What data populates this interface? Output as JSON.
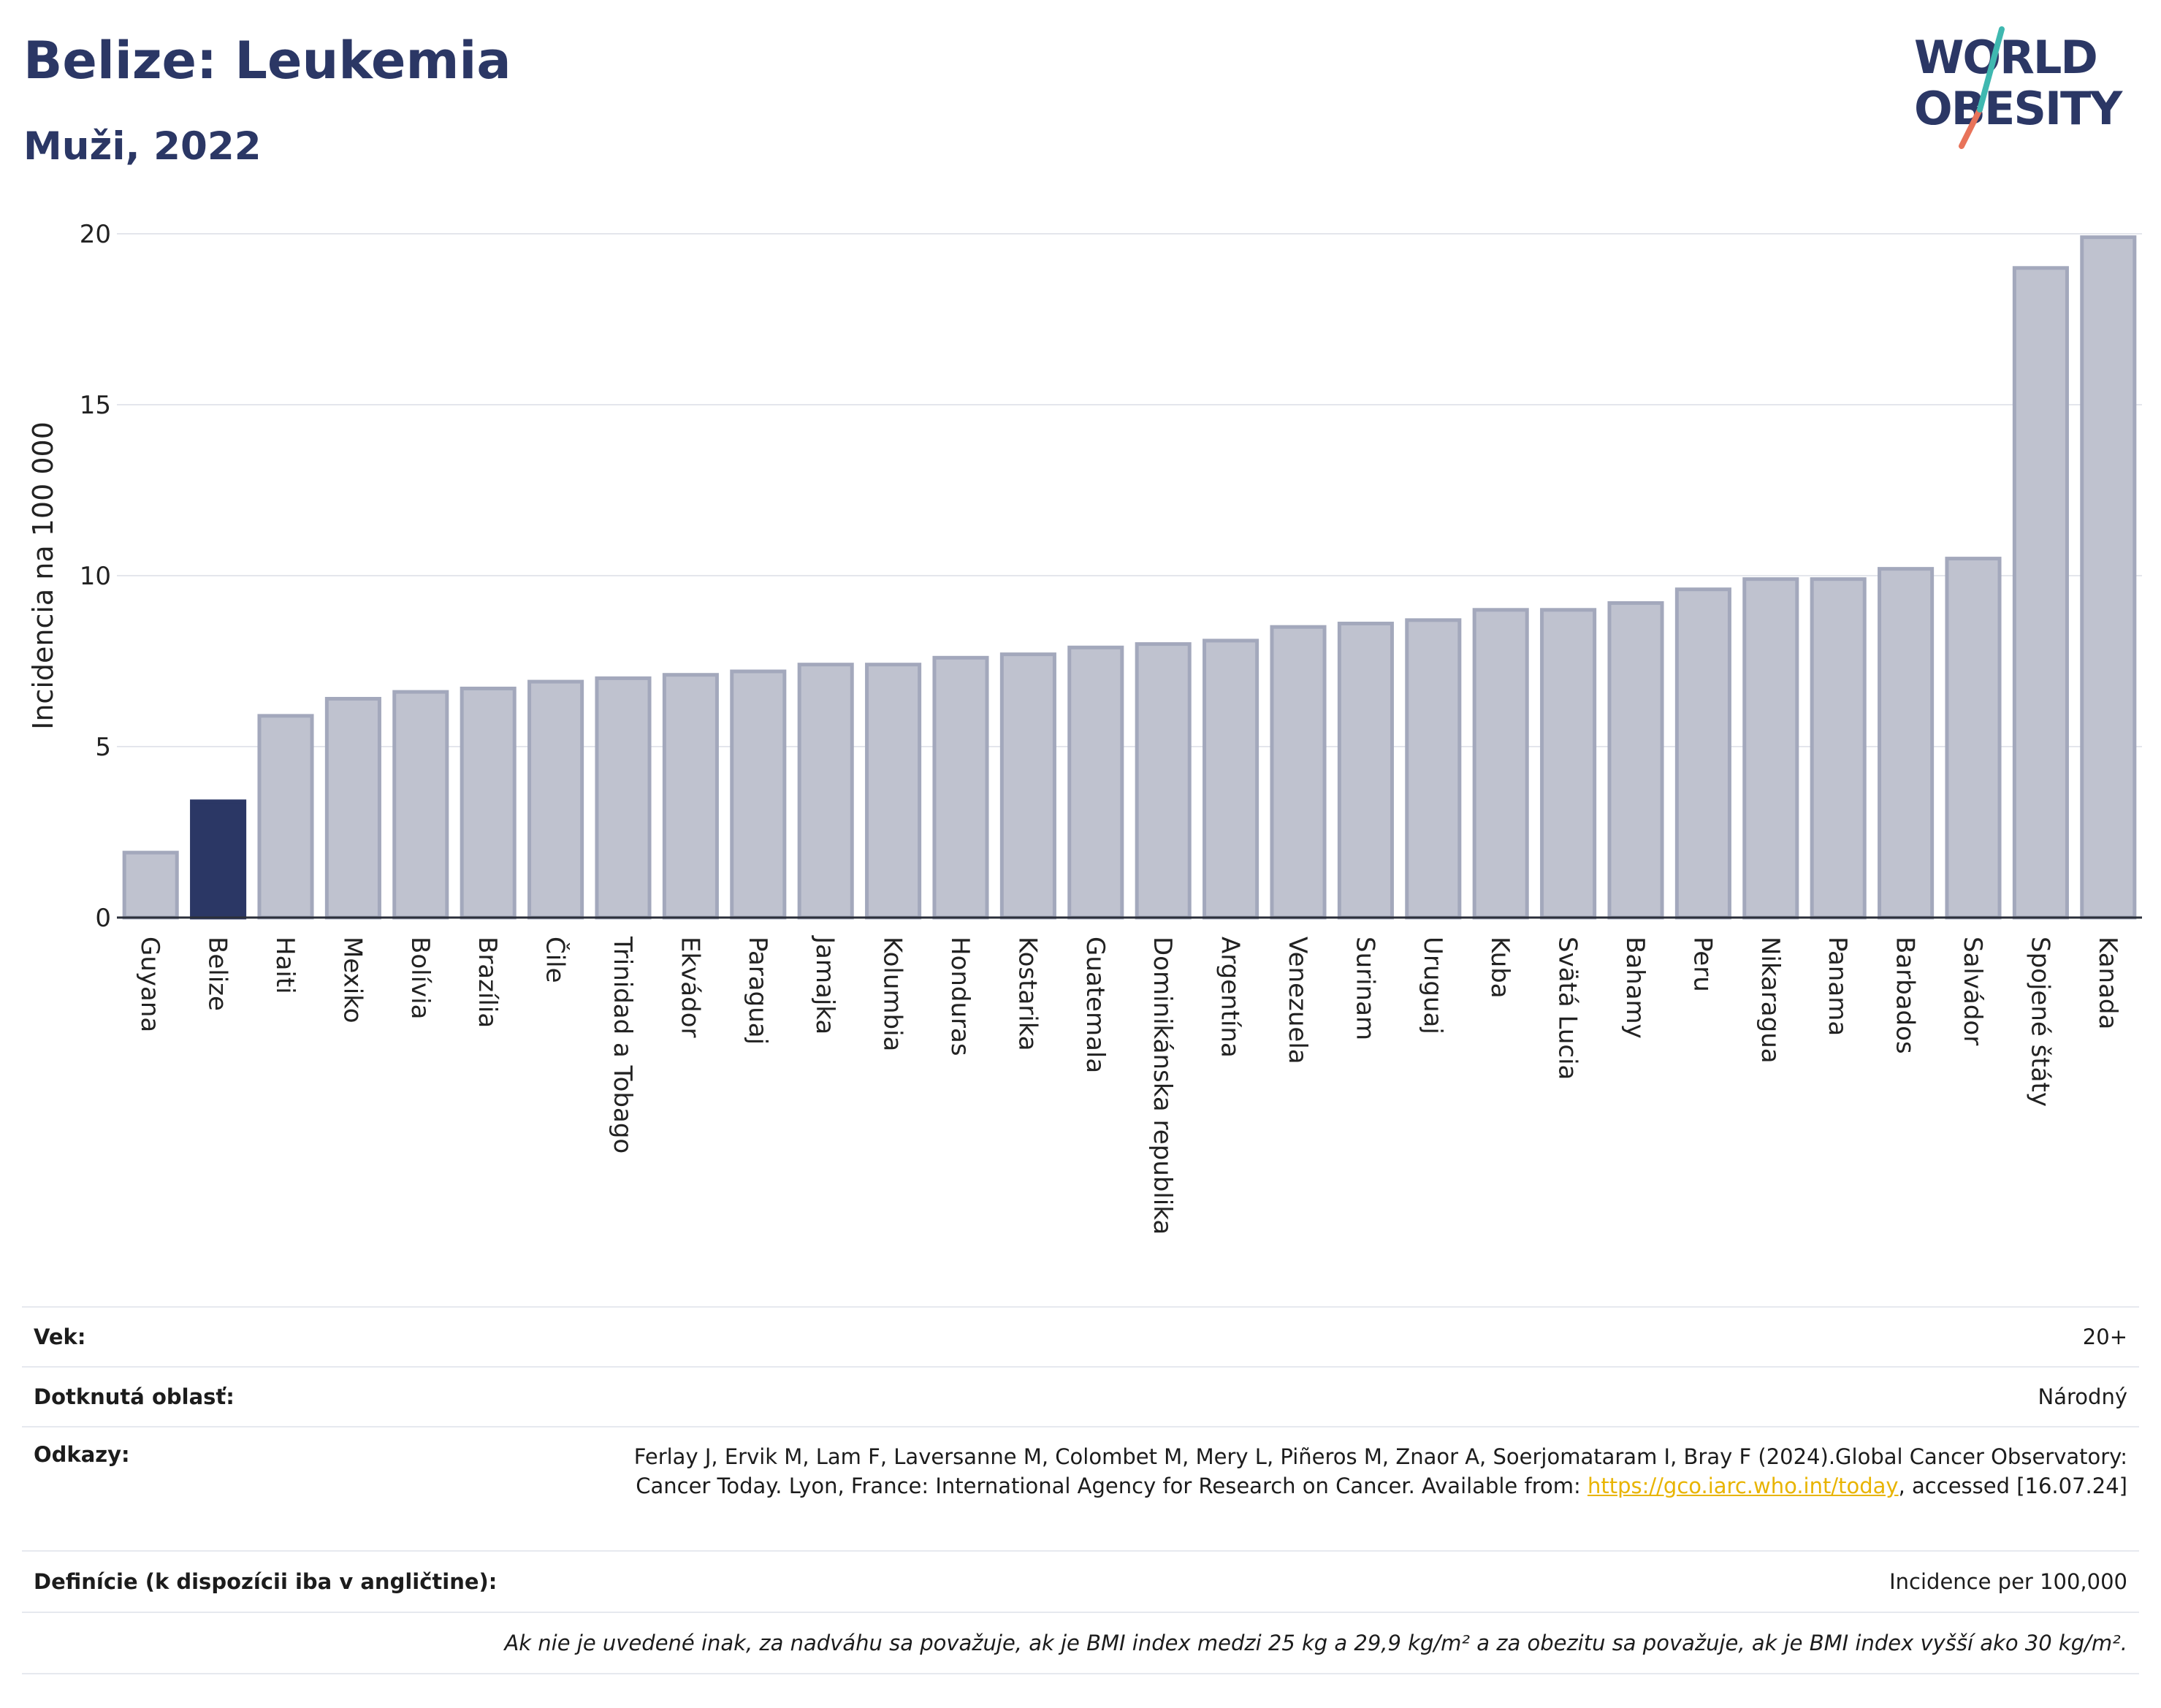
{
  "header": {
    "title": "Belize: Leukemia",
    "subtitle": "Muži, 2022"
  },
  "logo": {
    "line1": "WORLD",
    "line2": "OBESITY"
  },
  "colors": {
    "highlight": "#2b3765",
    "bar": "#bfc2cf",
    "bar_border": "#a3a8bc",
    "accent_teal": "#3fb8b0",
    "accent_coral": "#e8735a"
  },
  "chart_data": {
    "type": "bar",
    "ylabel": "Incidencia na 100 000",
    "ylim": [
      0,
      20
    ],
    "yticks": [
      0,
      5,
      10,
      15,
      20
    ],
    "grid": true,
    "highlight": "Belize",
    "categories": [
      "Guyana",
      "Belize",
      "Haiti",
      "Mexiko",
      "Bolívia",
      "Brazília",
      "Čile",
      "Trinidad a Tobago",
      "Ekvádor",
      "Paraguaj",
      "Jamajka",
      "Kolumbia",
      "Honduras",
      "Kostarika",
      "Guatemala",
      "Dominikánska republika",
      "Argentína",
      "Venezuela",
      "Surinam",
      "Uruguaj",
      "Kuba",
      "Svätá Lucia",
      "Bahamy",
      "Peru",
      "Nikaragua",
      "Panama",
      "Barbados",
      "Salvádor",
      "Spojené štáty",
      "Kanada"
    ],
    "values": [
      1.9,
      3.4,
      5.9,
      6.4,
      6.6,
      6.7,
      6.9,
      7.0,
      7.1,
      7.2,
      7.4,
      7.4,
      7.6,
      7.7,
      7.9,
      8.0,
      8.1,
      8.5,
      8.6,
      8.7,
      9.0,
      9.0,
      9.2,
      9.6,
      9.9,
      9.9,
      10.2,
      10.5,
      19.0,
      19.9
    ]
  },
  "meta": {
    "age_label": "Vek:",
    "age_value": "20+",
    "area_label": "Dotknutá oblasť:",
    "area_value": "Národný",
    "ref_label": "Odkazy:",
    "ref_text_1": "Ferlay J, Ervik M, Lam F, Laversanne M, Colombet M, Mery L, Piñeros M, Znaor A, Soerjomataram I, Bray F (2024).Global Cancer Observatory: Cancer Today. Lyon, France: International Agency for Research on Cancer. Available from: ",
    "ref_link": "https://gco.iarc.who.int/today",
    "ref_text_2": ", accessed [16.07.24]",
    "def_label": "Definície (k dispozícii iba v angličtine):",
    "def_value": "Incidence per 100,000",
    "note": "Ak nie je uvedené inak, za nadváhu sa považuje, ak je BMI index medzi 25 kg a 29,9 kg/m² a za obezitu sa považuje, ak je BMI index vyšší ako 30 kg/m²."
  }
}
